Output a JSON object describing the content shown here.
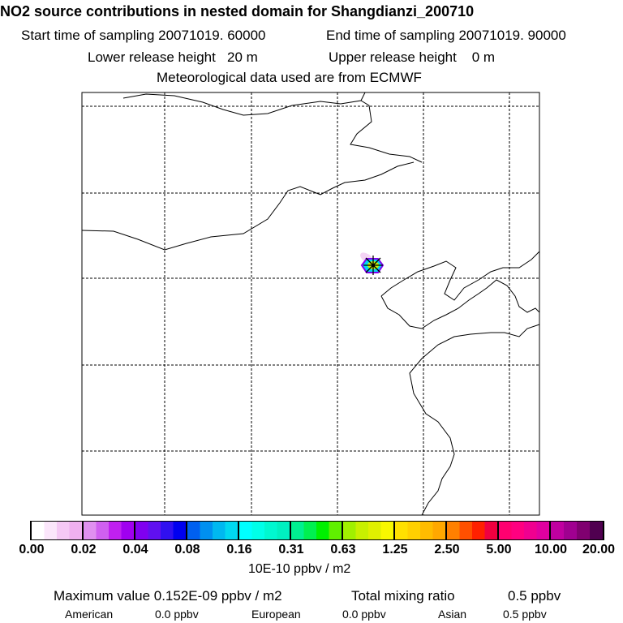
{
  "header": {
    "title": "NO2 source contributions in nested domain for Shangdianzi_200710",
    "start": "Start time of sampling 20071019. 60000",
    "end": "End time of sampling 20071019. 90000",
    "lower": "Lower release height   20 m",
    "upper": "Upper release height    0 m",
    "met": "Meteorological data used are from ECMWF"
  },
  "colorbar": {
    "ticks": [
      "0.00",
      "0.02",
      "0.04",
      "0.08",
      "0.16",
      "0.31",
      "0.63",
      "1.25",
      "2.50",
      "5.00",
      "10.00",
      "20.00"
    ],
    "units": "10E-10 ppbv / m2",
    "segments": [
      [
        "#ffffff",
        "#fbe6fb",
        "#f5c8f5",
        "#efb0ef"
      ],
      [
        "#e090f0",
        "#d060f0",
        "#c020f0",
        "#a000f0"
      ],
      [
        "#8000f0",
        "#6010f0",
        "#3010f0",
        "#0000f0"
      ],
      [
        "#0060f0",
        "#0090f0",
        "#00b8f0",
        "#00d8f0"
      ],
      [
        "#00ffff",
        "#00ffe8",
        "#00f8d0",
        "#00f0c0"
      ],
      [
        "#00f090",
        "#00f050",
        "#00f000",
        "#60f000"
      ],
      [
        "#a0f000",
        "#c8f000",
        "#e0f000",
        "#f8f800"
      ],
      [
        "#ffe000",
        "#ffd000",
        "#ffbc00",
        "#ffa800"
      ],
      [
        "#ff8000",
        "#ff5000",
        "#ff2000",
        "#f00040"
      ],
      [
        "#ff0070",
        "#ff0080",
        "#f00090",
        "#e000a0"
      ],
      [
        "#c000a0",
        "#a00090",
        "#800070",
        "#500050"
      ]
    ]
  },
  "footer": {
    "max": "Maximum value  0.152E-09 ppbv / m2",
    "total_label": "Total mixing ratio",
    "total_value": "0.5 ppbv",
    "american_label": "American",
    "american_value": "0.0 ppbv",
    "european_label": "European",
    "european_value": "0.0 ppbv",
    "asian_label": "Asian",
    "asian_value": "0.5 ppbv"
  }
}
